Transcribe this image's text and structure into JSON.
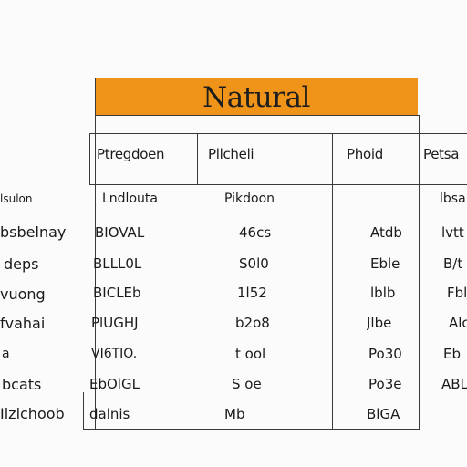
{
  "table": {
    "title": "Natural",
    "headers": [
      "Ptregdoen",
      "Pllcheli",
      "Phoid",
      "Petsa"
    ],
    "row_labels": [
      "lsulon",
      "bsbelnay",
      "deps",
      "vuong",
      "fvahai",
      "a",
      "bcats",
      "Ilzichoob"
    ],
    "rows": [
      [
        "Lndlouta",
        "Pikdoon",
        "",
        "lbsa"
      ],
      [
        "BIOVAL",
        "46cs",
        "Atdb",
        "lvtt"
      ],
      [
        "BLLL0L",
        "S0l0",
        "Eble",
        "B/t"
      ],
      [
        "BICLEb",
        "1l52",
        "lblb",
        "Fbl"
      ],
      [
        "PlUGHJ",
        "b2o8",
        "Jlbe",
        "Alc"
      ],
      [
        "VI6TIO.",
        "t ool",
        "Po30",
        "Eb"
      ],
      [
        "EbOlGL",
        "S oe",
        "Po3e",
        "ABL"
      ],
      [
        "dalnis",
        "Mb",
        "BlGA",
        ""
      ]
    ]
  }
}
